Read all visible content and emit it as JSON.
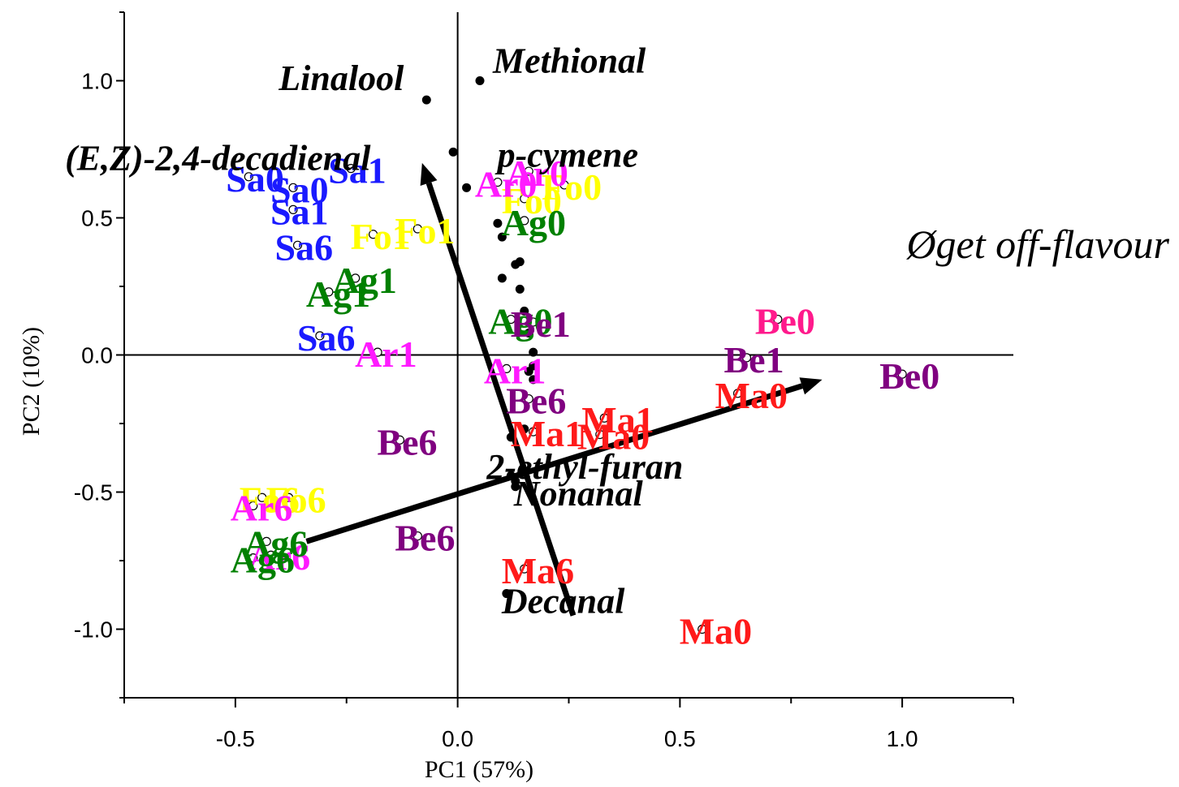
{
  "chart_data": {
    "type": "scatter",
    "title": "",
    "xlabel": "PC1 (57%)",
    "ylabel": "PC2 (10%)",
    "xlim": [
      -0.75,
      1.25
    ],
    "ylim": [
      -1.25,
      1.25
    ],
    "xticks": [
      -0.5,
      0.0,
      0.5,
      1.0
    ],
    "yticks": [
      -1.0,
      -0.5,
      0.0,
      0.5,
      1.0
    ],
    "xtick_labels": [
      "-0.5",
      "0.0",
      "0.5",
      "1.0"
    ],
    "ytick_labels": [
      "-1.0",
      "-0.5",
      "0.0",
      "0.5",
      "1.0"
    ],
    "grid": false,
    "annotation": "Øget off-flavour",
    "colors": {
      "Sa": "#1a1aff",
      "Fo": "#ffff00",
      "Ar": "#ff1aff",
      "Ag": "#008000",
      "Be": "#800080",
      "Be0_pink": "#ff1a8c",
      "Ma": "#ff1a1a",
      "compound": "#000000"
    },
    "samples": [
      {
        "label": "Sa0",
        "x": -0.47,
        "y": 0.65,
        "color": "#1a1aff"
      },
      {
        "label": "Sa0",
        "x": -0.37,
        "y": 0.61,
        "color": "#1a1aff"
      },
      {
        "label": "Sa1",
        "x": -0.24,
        "y": 0.68,
        "color": "#1a1aff"
      },
      {
        "label": "Sa1",
        "x": -0.37,
        "y": 0.53,
        "color": "#1a1aff"
      },
      {
        "label": "Sa6",
        "x": -0.36,
        "y": 0.4,
        "color": "#1a1aff"
      },
      {
        "label": "Sa6",
        "x": -0.31,
        "y": 0.07,
        "color": "#1a1aff"
      },
      {
        "label": "Fo1",
        "x": -0.19,
        "y": 0.44,
        "color": "#ffff00"
      },
      {
        "label": "Fo1",
        "x": -0.09,
        "y": 0.46,
        "color": "#ffff00"
      },
      {
        "label": "Fo0",
        "x": 0.15,
        "y": 0.57,
        "color": "#ffff00"
      },
      {
        "label": "Fo0",
        "x": 0.24,
        "y": 0.62,
        "color": "#ffff00"
      },
      {
        "label": "Fo6",
        "x": -0.44,
        "y": -0.52,
        "color": "#ffff00"
      },
      {
        "label": "Fo6",
        "x": -0.38,
        "y": -0.52,
        "color": "#ffff00"
      },
      {
        "label": "Ar0",
        "x": 0.09,
        "y": 0.63,
        "color": "#ff1aff"
      },
      {
        "label": "Ar0",
        "x": 0.16,
        "y": 0.67,
        "color": "#ff1aff"
      },
      {
        "label": "Ar1",
        "x": -0.18,
        "y": 0.01,
        "color": "#ff1aff"
      },
      {
        "label": "Ar1",
        "x": 0.11,
        "y": -0.05,
        "color": "#ff1aff"
      },
      {
        "label": "Ar6",
        "x": -0.46,
        "y": -0.55,
        "color": "#ff1aff"
      },
      {
        "label": "Ar6",
        "x": -0.42,
        "y": -0.73,
        "color": "#ff1aff"
      },
      {
        "label": "Ag0",
        "x": 0.15,
        "y": 0.49,
        "color": "#008000"
      },
      {
        "label": "Ag0",
        "x": 0.12,
        "y": 0.13,
        "color": "#008000"
      },
      {
        "label": "Ag1",
        "x": -0.23,
        "y": 0.28,
        "color": "#008000"
      },
      {
        "label": "Ag1",
        "x": -0.29,
        "y": 0.23,
        "color": "#008000"
      },
      {
        "label": "Ag6",
        "x": -0.43,
        "y": -0.68,
        "color": "#008000"
      },
      {
        "label": "Ag6",
        "x": -0.46,
        "y": -0.74,
        "color": "#008000"
      },
      {
        "label": "Be1",
        "x": 0.17,
        "y": 0.12,
        "color": "#800080"
      },
      {
        "label": "Be1",
        "x": 0.65,
        "y": -0.01,
        "color": "#800080"
      },
      {
        "label": "Be0",
        "x": 0.72,
        "y": 0.13,
        "color": "#ff1a8c"
      },
      {
        "label": "Be0",
        "x": 1.0,
        "y": -0.07,
        "color": "#800080"
      },
      {
        "label": "Be6",
        "x": 0.16,
        "y": -0.16,
        "color": "#800080"
      },
      {
        "label": "Be6",
        "x": -0.13,
        "y": -0.31,
        "color": "#800080"
      },
      {
        "label": "Be6",
        "x": -0.09,
        "y": -0.66,
        "color": "#800080"
      },
      {
        "label": "Ma1",
        "x": 0.33,
        "y": -0.23,
        "color": "#ff1a1a"
      },
      {
        "label": "Ma1",
        "x": 0.17,
        "y": -0.28,
        "color": "#ff1a1a"
      },
      {
        "label": "Ma0",
        "x": 0.32,
        "y": -0.29,
        "color": "#ff1a1a"
      },
      {
        "label": "Ma0",
        "x": 0.63,
        "y": -0.14,
        "color": "#ff1a1a"
      },
      {
        "label": "Ma0",
        "x": 0.55,
        "y": -1.0,
        "color": "#ff1a1a"
      },
      {
        "label": "Ma6",
        "x": 0.15,
        "y": -0.78,
        "color": "#ff1a1a"
      }
    ],
    "compounds": [
      {
        "label": "Linalool",
        "x": -0.07,
        "y": 0.93
      },
      {
        "label": "Methional",
        "x": 0.05,
        "y": 1.0
      },
      {
        "label": "(E,Z)-2,4-decadienal",
        "x": -0.01,
        "y": 0.74
      },
      {
        "label": "p-cymene",
        "x": 0.02,
        "y": 0.61
      },
      {
        "label": "",
        "x": 0.09,
        "y": 0.48
      },
      {
        "label": "",
        "x": 0.1,
        "y": 0.43
      },
      {
        "label": "",
        "x": 0.14,
        "y": 0.34
      },
      {
        "label": "",
        "x": 0.13,
        "y": 0.33
      },
      {
        "label": "",
        "x": 0.1,
        "y": 0.28
      },
      {
        "label": "",
        "x": 0.14,
        "y": 0.24
      },
      {
        "label": "",
        "x": 0.15,
        "y": 0.16
      },
      {
        "label": "",
        "x": 0.16,
        "y": 0.08
      },
      {
        "label": "",
        "x": 0.17,
        "y": 0.01
      },
      {
        "label": "",
        "x": 0.17,
        "y": -0.04
      },
      {
        "label": "",
        "x": 0.17,
        "y": -0.09
      },
      {
        "label": "",
        "x": 0.16,
        "y": -0.06
      },
      {
        "label": "",
        "x": 0.15,
        "y": -0.27
      },
      {
        "label": "",
        "x": 0.12,
        "y": -0.3
      },
      {
        "label": "2-ethyl-furan",
        "x": 0.12,
        "y": -0.44
      },
      {
        "label": "",
        "x": 0.13,
        "y": -0.48
      },
      {
        "label": "Nonanal",
        "x": 0.13,
        "y": -0.46
      },
      {
        "label": "Decanal",
        "x": 0.11,
        "y": -0.87
      }
    ],
    "arrows": [
      {
        "from": [
          0.26,
          -0.95
        ],
        "to": [
          -0.08,
          0.7
        ]
      },
      {
        "from": [
          -0.34,
          -0.68
        ],
        "to": [
          0.82,
          -0.09
        ]
      }
    ]
  }
}
